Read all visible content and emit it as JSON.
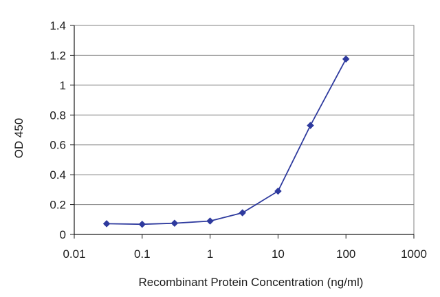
{
  "chart_data": {
    "type": "line",
    "title": "",
    "xlabel": "Recombinant Protein Concentration (ng/ml)",
    "ylabel": "OD 450",
    "x_scale": "log",
    "xlim": [
      0.01,
      1000
    ],
    "ylim": [
      0,
      1.4
    ],
    "x_ticks": [
      "0.01",
      "0.1",
      "1",
      "10",
      "100",
      "1000"
    ],
    "y_ticks": [
      "0",
      "0.2",
      "0.4",
      "0.6",
      "0.8",
      "1",
      "1.2",
      "1.4"
    ],
    "grid": "horizontal",
    "legend": "none",
    "series": [
      {
        "color": "#2e3a9e",
        "marker": "diamond",
        "x": [
          0.03,
          0.1,
          0.3,
          1,
          3,
          10,
          30,
          100
        ],
        "y": [
          0.072,
          0.068,
          0.075,
          0.09,
          0.145,
          0.29,
          0.73,
          1.175
        ]
      }
    ]
  }
}
